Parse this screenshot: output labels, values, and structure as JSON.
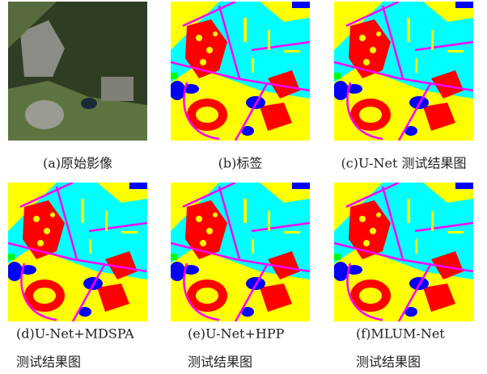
{
  "panels": [
    {
      "caption": [
        "(a)原始影像"
      ]
    },
    {
      "caption": [
        "(b)标签"
      ]
    },
    {
      "caption": [
        "(c)U-Net 测试结果图"
      ]
    },
    {
      "caption": [
        "(d)U-Net+MDSPA",
        "测试结果图"
      ]
    },
    {
      "caption": [
        "(e)U-Net+HPP",
        "测试结果图"
      ]
    },
    {
      "caption": [
        "(f)MLUM-Net",
        "测试结果图"
      ]
    }
  ]
}
